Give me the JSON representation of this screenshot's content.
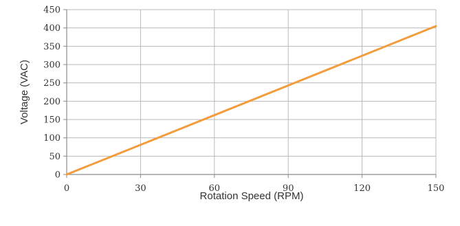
{
  "chart_data": {
    "type": "line",
    "title": "",
    "xlabel": "Rotation Speed (RPM)",
    "ylabel": "Voltage (VAC)",
    "xlim": [
      0,
      150
    ],
    "ylim": [
      0,
      450
    ],
    "x_ticks": [
      0,
      30,
      60,
      90,
      120,
      150
    ],
    "y_ticks": [
      0,
      50,
      100,
      150,
      200,
      250,
      300,
      350,
      400,
      450
    ],
    "x_tick_labels": [
      "0",
      "30",
      "60",
      "90",
      "120",
      "150"
    ],
    "y_tick_labels": [
      "0",
      "50",
      "100",
      "150",
      "200",
      "250",
      "300",
      "350",
      "400",
      "450"
    ],
    "grid": true,
    "legend": "none",
    "series": [
      {
        "color": "#f39c3c",
        "x": [
          0,
          150
        ],
        "y": [
          0,
          405
        ]
      }
    ]
  },
  "colors": {
    "grid": "#b9b9b9",
    "axis": "#8c8c8c",
    "text": "#333333"
  }
}
